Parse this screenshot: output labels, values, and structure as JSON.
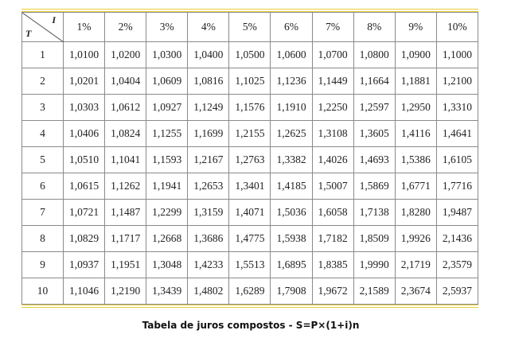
{
  "table": {
    "corner": {
      "col": "I",
      "row": "T"
    },
    "columns": [
      "1%",
      "2%",
      "3%",
      "4%",
      "5%",
      "6%",
      "7%",
      "8%",
      "9%",
      "10%"
    ],
    "rows": [
      {
        "label": "1",
        "values": [
          "1,0100",
          "1,0200",
          "1,0300",
          "1,0400",
          "1,0500",
          "1,0600",
          "1,0700",
          "1,0800",
          "1,0900",
          "1,1000"
        ]
      },
      {
        "label": "2",
        "values": [
          "1,0201",
          "1,0404",
          "1,0609",
          "1,0816",
          "1,1025",
          "1,1236",
          "1,1449",
          "1,1664",
          "1,1881",
          "1,2100"
        ]
      },
      {
        "label": "3",
        "values": [
          "1,0303",
          "1,0612",
          "1,0927",
          "1,1249",
          "1,1576",
          "1,1910",
          "1,2250",
          "1,2597",
          "1,2950",
          "1,3310"
        ]
      },
      {
        "label": "4",
        "values": [
          "1,0406",
          "1,0824",
          "1,1255",
          "1,1699",
          "1,2155",
          "1,2625",
          "1,3108",
          "1,3605",
          "1,4116",
          "1,4641"
        ]
      },
      {
        "label": "5",
        "values": [
          "1,0510",
          "1,1041",
          "1,1593",
          "1,2167",
          "1,2763",
          "1,3382",
          "1,4026",
          "1,4693",
          "1,5386",
          "1,6105"
        ]
      },
      {
        "label": "6",
        "values": [
          "1,0615",
          "1,1262",
          "1,1941",
          "1,2653",
          "1,3401",
          "1,4185",
          "1,5007",
          "1,5869",
          "1,6771",
          "1,7716"
        ]
      },
      {
        "label": "7",
        "values": [
          "1,0721",
          "1,1487",
          "1,2299",
          "1,3159",
          "1,4071",
          "1,5036",
          "1,6058",
          "1,7138",
          "1,8280",
          "1,9487"
        ]
      },
      {
        "label": "8",
        "values": [
          "1,0829",
          "1,1717",
          "1,2668",
          "1,3686",
          "1,4775",
          "1,5938",
          "1,7182",
          "1,8509",
          "1,9926",
          "2,1436"
        ]
      },
      {
        "label": "9",
        "values": [
          "1,0937",
          "1,1951",
          "1,3048",
          "1,4233",
          "1,5513",
          "1,6895",
          "1,8385",
          "1,9990",
          "2,1719",
          "2,3579"
        ]
      },
      {
        "label": "10",
        "values": [
          "1,1046",
          "1,2190",
          "1,3439",
          "1,4802",
          "1,6289",
          "1,7908",
          "1,9672",
          "2,1589",
          "2,3674",
          "2,5937"
        ]
      }
    ]
  },
  "caption": "Tabela de juros compostos - S=P×(1+i)n"
}
